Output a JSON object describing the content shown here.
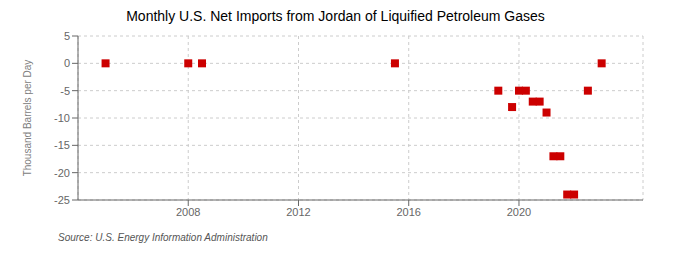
{
  "chart_data": {
    "type": "scatter",
    "title": "Monthly U.S. Net Imports from Jordan of Liquified Petroleum Gases",
    "ylabel": "Thousand Barrels per Day",
    "annotation": "Source: U.S. Energy Information Administration",
    "x": [
      2005.0,
      2008.0,
      2008.5,
      2015.5,
      2019.25,
      2019.75,
      2020.0,
      2020.25,
      2020.5,
      2020.75,
      2021.0,
      2021.25,
      2021.5,
      2021.75,
      2022.0,
      2022.5,
      2023.0
    ],
    "values": [
      0,
      0,
      0,
      0,
      -5,
      -8,
      -5,
      -5,
      -7,
      -7,
      -9,
      -17,
      -17,
      -24,
      -24,
      -5,
      0
    ],
    "xlim": [
      2004.0,
      2024.5
    ],
    "xticks": [
      2008,
      2012,
      2016,
      2020
    ],
    "ylim": [
      -25,
      5
    ],
    "yticks": [
      5,
      0,
      -5,
      -10,
      -15,
      -20,
      -25
    ],
    "grid": true,
    "color": "#cc0000",
    "marker": "square"
  }
}
